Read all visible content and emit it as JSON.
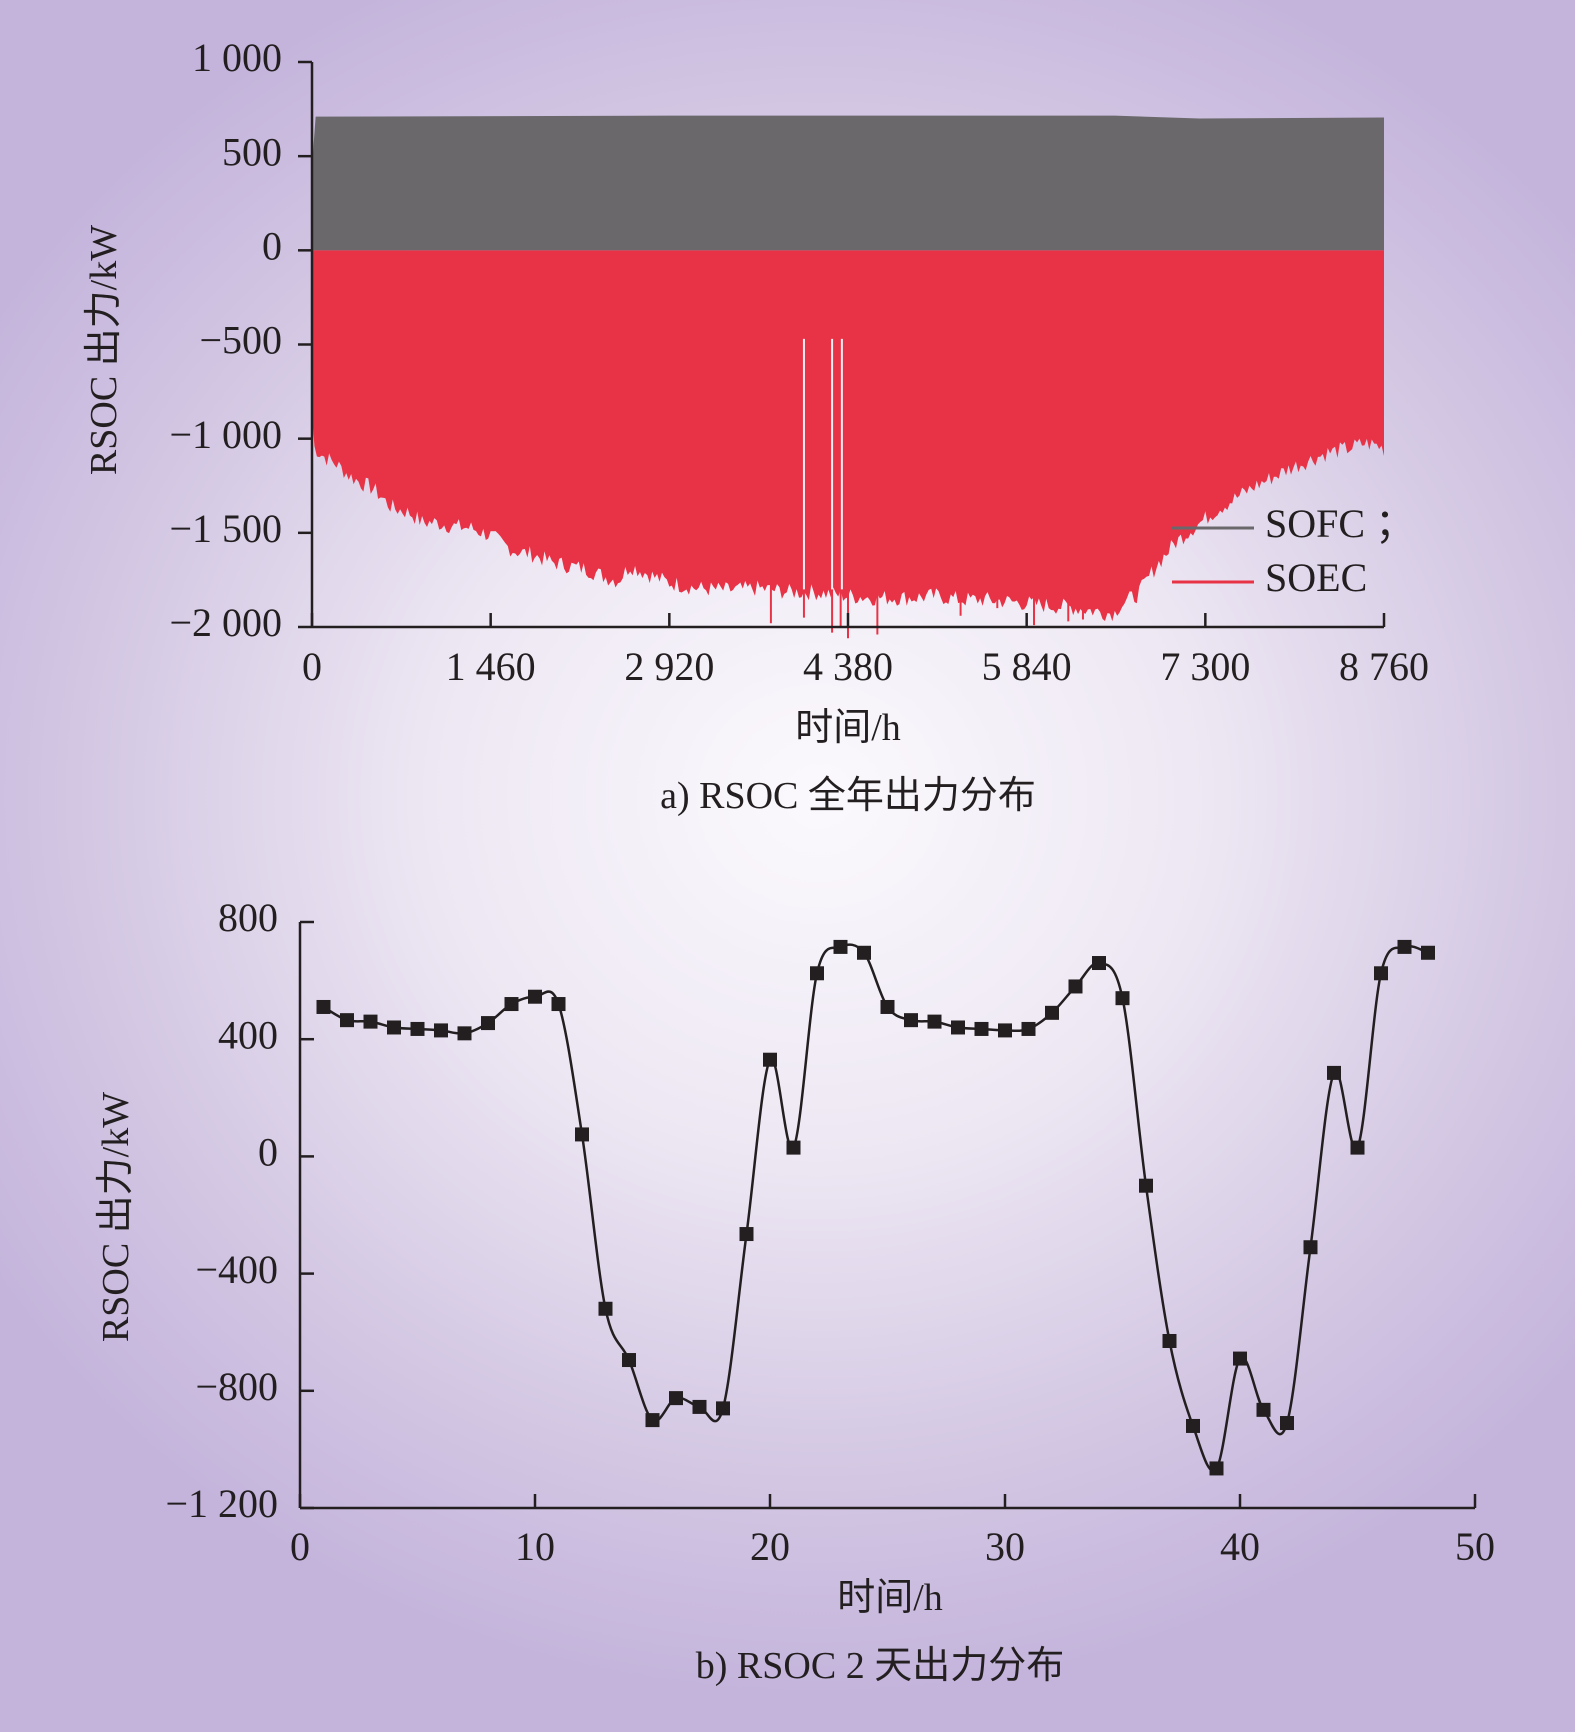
{
  "chart_data": [
    {
      "type": "area",
      "caption": "a) RSOC 全年出力分布",
      "xlabel": "时间/h",
      "ylabel": "RSOC 出力/kW",
      "xlim": [
        0,
        8760
      ],
      "ylim": [
        -2000,
        1000
      ],
      "x_ticks": [
        0,
        1460,
        2920,
        4380,
        5840,
        7300,
        8760
      ],
      "x_tick_labels": [
        "0",
        "1 460",
        "2 920",
        "4 380",
        "5 840",
        "7 300",
        "8 760"
      ],
      "y_ticks": [
        1000,
        500,
        0,
        -500,
        -1000,
        -1500,
        -2000
      ],
      "y_tick_labels": [
        "1 000",
        "500",
        "0",
        "−500",
        "−1 000",
        "−1 500",
        "−2 000"
      ],
      "legend_position": "bottom-right",
      "series": [
        {
          "name": "SOFC ；",
          "color": "#6a686b",
          "description": "hourly upper envelope (max output)",
          "x": [
            0,
            30,
            2920,
            3650,
            4380,
            6560,
            7250,
            8760
          ],
          "values": [
            450,
            710,
            715,
            715,
            715,
            715,
            700,
            705
          ]
        },
        {
          "name": "SOEC",
          "color": "#e83346",
          "description": "hourly lower envelope (min output)",
          "x": [
            0,
            20,
            60,
            120,
            200,
            300,
            400,
            500,
            650,
            800,
            900,
            1000,
            1150,
            1300,
            1460,
            1550,
            1650,
            1800,
            1950,
            2100,
            2250,
            2400,
            2500,
            2600,
            2800,
            2920,
            3150,
            3400,
            3650,
            3900,
            4100,
            4380,
            4600,
            4900,
            5100,
            5300,
            5500,
            5700,
            5840,
            6000,
            6200,
            6400,
            6500,
            6560,
            6600,
            6650,
            6750,
            6900,
            7050,
            7200,
            7300,
            7400,
            7550,
            7700,
            7850,
            8000,
            8150,
            8300,
            8450,
            8600,
            8700,
            8760
          ],
          "values": [
            -900,
            -1070,
            -1100,
            -1130,
            -1160,
            -1220,
            -1260,
            -1290,
            -1390,
            -1420,
            -1470,
            -1470,
            -1490,
            -1500,
            -1540,
            -1580,
            -1620,
            -1640,
            -1680,
            -1700,
            -1720,
            -1760,
            -1780,
            -1700,
            -1760,
            -1790,
            -1820,
            -1830,
            -1820,
            -1840,
            -1840,
            -1860,
            -1870,
            -1870,
            -1860,
            -1880,
            -1880,
            -1890,
            -1900,
            -1910,
            -1920,
            -1940,
            -1950,
            -1950,
            -1910,
            -1890,
            -1850,
            -1700,
            -1580,
            -1500,
            -1450,
            -1400,
            -1340,
            -1280,
            -1230,
            -1180,
            -1140,
            -1100,
            -1080,
            -1050,
            -1060,
            -1080
          ]
        }
      ]
    },
    {
      "type": "line",
      "caption": "b) RSOC 2 天出力分布",
      "xlabel": "时间/h",
      "ylabel": "RSOC 出力/kW",
      "xlim": [
        0,
        50
      ],
      "ylim": [
        -1200,
        800
      ],
      "x_ticks": [
        0,
        10,
        20,
        30,
        40,
        50
      ],
      "x_tick_labels": [
        "0",
        "10",
        "20",
        "30",
        "40",
        "50"
      ],
      "y_ticks": [
        800,
        400,
        0,
        -400,
        -800,
        -1200
      ],
      "y_tick_labels": [
        "800",
        "400",
        "0",
        "−400",
        "−800",
        "−1 200"
      ],
      "marker": "square",
      "color": "#231f20",
      "series": [
        {
          "x": [
            1,
            2,
            3,
            4,
            5,
            6,
            7,
            8,
            9,
            10,
            11,
            12,
            13,
            14,
            15,
            16,
            17,
            18,
            19,
            20,
            21,
            22,
            23,
            24,
            25,
            26,
            27,
            28,
            29,
            30,
            31,
            32,
            33,
            34,
            35,
            36,
            37,
            38,
            39,
            40,
            41,
            42,
            43,
            44,
            45,
            46,
            47,
            48
          ],
          "values": [
            510,
            465,
            460,
            440,
            435,
            430,
            420,
            455,
            520,
            545,
            520,
            75,
            -520,
            -695,
            -900,
            -825,
            -855,
            -860,
            -265,
            330,
            30,
            625,
            715,
            695,
            510,
            465,
            460,
            440,
            435,
            430,
            435,
            490,
            580,
            660,
            540,
            -100,
            -630,
            -920,
            -1065,
            -690,
            -865,
            -910,
            -310,
            285,
            30,
            625,
            715,
            695
          ]
        }
      ]
    }
  ]
}
